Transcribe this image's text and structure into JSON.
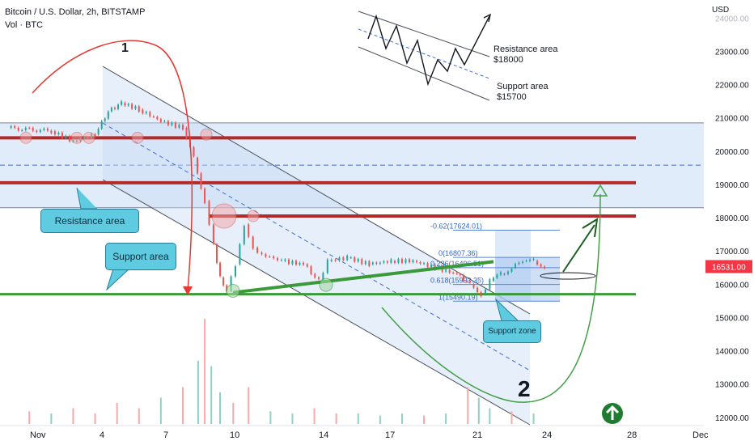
{
  "header": {
    "title": "Bitcoin / U.S. Dollar, 2h, BITSTAMP",
    "volume_label": "Vol · BTC",
    "currency": "USD"
  },
  "chart_data": {
    "type": "candlestick",
    "symbol": "BTCUSD",
    "y_axis": {
      "ticks": [
        12000,
        13000,
        14000,
        15000,
        16000,
        17000,
        18000,
        19000,
        20000,
        21000,
        22000,
        23000,
        24000
      ],
      "tick_labels": [
        "12000.00",
        "13000.00",
        "14000.00",
        "15000.00",
        "16000.00",
        "17000.00",
        "18000.00",
        "19000.00",
        "20000.00",
        "21000.00",
        "22000.00",
        "23000.00",
        "24000.00"
      ],
      "ylim": [
        11800,
        24300
      ]
    },
    "x_axis": {
      "tick_labels": [
        "Nov",
        "4",
        "7",
        "10",
        "14",
        "17",
        "21",
        "24",
        "28",
        "Dec"
      ],
      "tick_days": [
        1,
        4,
        7,
        10,
        14,
        17,
        21,
        24,
        28,
        31
      ]
    },
    "last_price": "16531.00",
    "price_path": [
      [
        0,
        20700
      ],
      [
        2,
        20600
      ],
      [
        3,
        20300
      ],
      [
        4,
        20500
      ],
      [
        4.6,
        21200
      ],
      [
        5.2,
        21450
      ],
      [
        6,
        21250
      ],
      [
        7,
        20900
      ],
      [
        8,
        20700
      ],
      [
        8.5,
        19800
      ],
      [
        9.0,
        18500
      ],
      [
        9.4,
        17200
      ],
      [
        9.7,
        16200
      ],
      [
        10.0,
        15800
      ],
      [
        10.4,
        16600
      ],
      [
        10.8,
        17800
      ],
      [
        11.2,
        17100
      ],
      [
        11.6,
        16900
      ],
      [
        12.5,
        16700
      ],
      [
        13.5,
        16600
      ],
      [
        14.2,
        16100
      ],
      [
        14.6,
        16700
      ],
      [
        15.5,
        16800
      ],
      [
        16.5,
        16600
      ],
      [
        17.5,
        16700
      ],
      [
        18.5,
        16700
      ],
      [
        19.5,
        16500
      ],
      [
        20.5,
        16300
      ],
      [
        21.1,
        16000
      ],
      [
        21.6,
        15700
      ],
      [
        22.0,
        16100
      ],
      [
        22.5,
        16300
      ],
      [
        23.0,
        16500
      ],
      [
        23.5,
        16700
      ],
      [
        24.0,
        16700
      ],
      [
        24.5,
        16530
      ]
    ],
    "volume": [
      [
        1,
        0.12
      ],
      [
        2,
        0.1
      ],
      [
        3,
        0.15
      ],
      [
        4,
        0.1
      ],
      [
        5,
        0.2
      ],
      [
        6,
        0.15
      ],
      [
        7,
        0.25
      ],
      [
        8,
        0.35
      ],
      [
        8.7,
        0.6
      ],
      [
        9,
        1.0
      ],
      [
        9.3,
        0.55
      ],
      [
        9.7,
        0.3
      ],
      [
        10.3,
        0.2
      ],
      [
        11,
        0.35
      ],
      [
        12,
        0.12
      ],
      [
        13,
        0.1
      ],
      [
        14,
        0.15
      ],
      [
        15,
        0.1
      ],
      [
        16,
        0.1
      ],
      [
        17,
        0.08
      ],
      [
        18,
        0.1
      ],
      [
        19,
        0.08
      ],
      [
        20,
        0.1
      ],
      [
        21,
        0.35
      ],
      [
        21.5,
        0.25
      ],
      [
        22,
        0.15
      ],
      [
        23,
        0.12
      ],
      [
        24,
        0.1
      ]
    ],
    "horizontal_levels": {
      "resistance": [
        20400,
        19050,
        18050
      ],
      "support": [
        15700
      ],
      "grey": [
        20850,
        18300
      ]
    },
    "fibonacci": {
      "levels": [
        {
          "ratio": "-0.62",
          "price": 17624.01,
          "label": "-0.62(17624.01)"
        },
        {
          "ratio": "0",
          "price": 16807.36,
          "label": "0(16807.36)"
        },
        {
          "ratio": "0.236",
          "price": 16496.51,
          "label": "0.236(16496.51)"
        },
        {
          "ratio": "0.618",
          "price": 15993.35,
          "label": "0.618(15993.35)"
        },
        {
          "ratio": "1",
          "price": 15490.19,
          "label": "1(15490.19)"
        }
      ]
    },
    "annotations": {
      "resistance_callout": "Resistance area",
      "support_callout": "Support area",
      "support_zone_callout": "Support zone",
      "wave_1": "1",
      "wave_2": "2",
      "inset_resistance": "Resistance area\n$18000",
      "inset_support": "Support area\n$15700"
    },
    "colors": {
      "candle_up": "#26a69a",
      "candle_down": "#ef5350",
      "resistance_line": "#b22a2a",
      "support_line": "#3a9a3a",
      "band_fill": "#c7dcf5",
      "callout_fill": "#5ecbe0",
      "price_badge": "#f23645",
      "arrow_badge": "#1e7b2f"
    }
  }
}
